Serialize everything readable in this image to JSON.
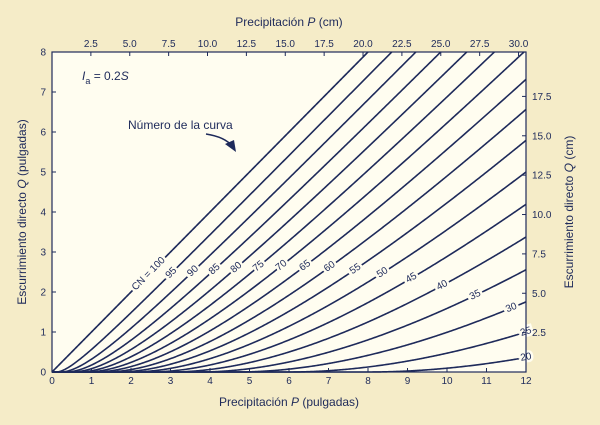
{
  "chart_data": {
    "type": "line",
    "x_axis_bottom": {
      "label_prefix": "Precipitación ",
      "label_var": "P",
      "label_suffix": " (pulgadas)",
      "range": [
        0,
        12
      ],
      "ticks": [
        "0",
        "1",
        "2",
        "3",
        "4",
        "5",
        "6",
        "7",
        "8",
        "9",
        "10",
        "11",
        "12"
      ]
    },
    "x_axis_top": {
      "label_prefix": "Precipitación ",
      "label_var": "P",
      "label_suffix": " (cm)",
      "range_cm": [
        0,
        30.48
      ],
      "tick_values": [
        2.5,
        5.0,
        7.5,
        10.0,
        12.5,
        15.0,
        17.5,
        20.0,
        22.5,
        25.0,
        27.5,
        30.0
      ],
      "ticks": [
        "2.5",
        "5.0",
        "7.5",
        "10.0",
        "12.5",
        "15.0",
        "17.5",
        "20.0",
        "22.5",
        "25.0",
        "27.5",
        "30.0"
      ]
    },
    "y_axis_left": {
      "label_prefix": "Escurrimiento directo ",
      "label_var": "Q",
      "label_suffix": " (pulgadas)",
      "range": [
        0,
        8
      ],
      "ticks": [
        "0",
        "1",
        "2",
        "3",
        "4",
        "5",
        "6",
        "7",
        "8"
      ]
    },
    "y_axis_right": {
      "label_prefix": "Escurrimiento directo ",
      "label_var": "Q",
      "label_suffix": " (cm)",
      "tick_values": [
        2.5,
        5.0,
        7.5,
        10.0,
        12.5,
        15.0,
        17.5
      ],
      "ticks": [
        "2.5",
        "5.0",
        "7.5",
        "10.0",
        "12.5",
        "15.0",
        "17.5"
      ]
    },
    "annotation_ia": {
      "italic_I": "I",
      "sub": "a",
      "rest": " = 0.2",
      "italic_S": "S"
    },
    "annotation_curve": "Número de la curva",
    "cn_prefix": "CN = ",
    "series": [
      {
        "cn": 100,
        "label": "100"
      },
      {
        "cn": 95,
        "label": "95"
      },
      {
        "cn": 90,
        "label": "90"
      },
      {
        "cn": 85,
        "label": "85"
      },
      {
        "cn": 80,
        "label": "80"
      },
      {
        "cn": 75,
        "label": "75"
      },
      {
        "cn": 70,
        "label": "70"
      },
      {
        "cn": 65,
        "label": "65"
      },
      {
        "cn": 60,
        "label": "60"
      },
      {
        "cn": 55,
        "label": "55"
      },
      {
        "cn": 50,
        "label": "50"
      },
      {
        "cn": 45,
        "label": "45"
      },
      {
        "cn": 40,
        "label": "40"
      },
      {
        "cn": 35,
        "label": "35"
      },
      {
        "cn": 30,
        "label": "30"
      },
      {
        "cn": 25,
        "label": "25"
      },
      {
        "cn": 20,
        "label": "20"
      }
    ],
    "colors": {
      "background": "#f5ecc8",
      "plot": "#fffdf0",
      "line": "#1e2a5a"
    }
  }
}
